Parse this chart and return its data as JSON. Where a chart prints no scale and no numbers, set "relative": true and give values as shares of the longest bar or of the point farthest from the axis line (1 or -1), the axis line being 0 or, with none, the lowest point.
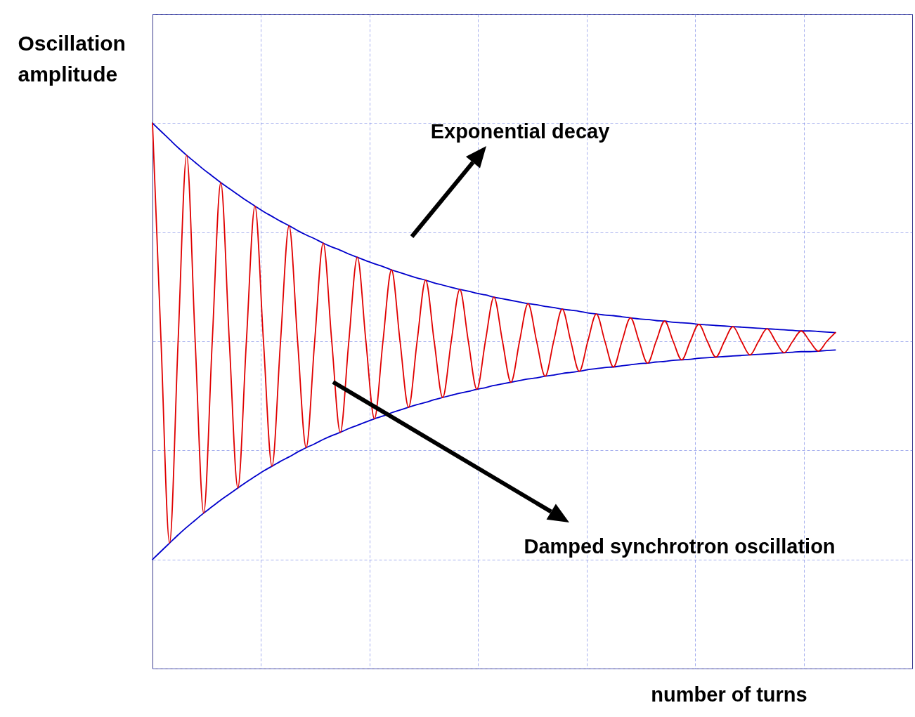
{
  "chart_data": {
    "type": "line",
    "relative": true,
    "grid": true,
    "ylabel": "Oscillation amplitude",
    "xlabel": "number of turns",
    "annotations": [
      "Exponential decay",
      "Damped synchrotron oscillation"
    ],
    "categories": [
      null,
      null,
      null,
      null,
      null,
      null,
      null,
      null,
      null,
      null,
      null,
      null,
      null,
      null,
      null,
      null,
      null,
      null,
      null,
      null,
      null,
      null,
      null,
      null,
      null,
      null,
      null,
      null,
      null,
      null,
      null,
      null,
      null,
      null,
      null,
      null,
      null,
      null,
      null,
      null,
      null,
      null,
      null,
      null,
      null,
      null,
      null,
      null,
      null,
      null,
      null,
      null,
      null,
      null,
      null,
      null,
      null,
      null,
      null,
      null,
      null,
      null,
      null,
      null,
      null,
      null,
      null,
      null,
      null,
      null,
      null,
      null,
      null,
      null,
      null,
      null,
      null,
      null,
      null,
      null,
      null,
      null,
      null,
      null,
      null,
      null,
      null,
      null,
      null,
      null
    ],
    "series": [
      {
        "color": "#0000cc",
        "values": [
          1.0,
          0.985,
          0.97,
          0.955,
          0.941,
          0.928,
          0.915,
          0.903,
          0.891,
          0.88,
          0.869,
          0.858,
          0.848,
          0.838,
          0.829,
          0.82,
          0.812,
          0.803,
          0.795,
          0.788,
          0.78,
          0.773,
          0.767,
          0.76,
          0.754,
          0.748,
          0.742,
          0.737,
          0.731,
          0.726,
          0.721,
          0.716,
          0.712,
          0.707,
          0.703,
          0.699,
          0.695,
          0.692,
          0.688,
          0.685,
          0.681,
          0.678,
          0.675,
          0.672,
          0.669,
          0.667,
          0.664,
          0.662,
          0.659,
          0.657,
          0.655,
          0.652,
          0.65,
          0.648,
          0.647,
          0.645,
          0.643,
          0.641,
          0.64,
          0.638,
          0.637,
          0.635,
          0.634,
          0.633,
          0.631,
          0.63,
          0.629,
          0.628,
          0.627,
          0.626,
          0.625,
          0.624,
          0.623,
          0.622,
          0.621,
          0.62,
          0.619,
          0.619,
          0.618,
          0.617,
          0.616,
          null,
          null,
          null,
          null,
          null,
          null,
          null,
          null,
          null
        ]
      },
      {
        "color": "#0000cc",
        "values": [
          0.2,
          0.215,
          0.23,
          0.245,
          0.259,
          0.272,
          0.285,
          0.297,
          0.309,
          0.32,
          0.331,
          0.342,
          0.352,
          0.362,
          0.371,
          0.38,
          0.388,
          0.397,
          0.405,
          0.412,
          0.42,
          0.427,
          0.433,
          0.44,
          0.446,
          0.452,
          0.458,
          0.463,
          0.469,
          0.474,
          0.479,
          0.484,
          0.488,
          0.493,
          0.497,
          0.501,
          0.505,
          0.508,
          0.512,
          0.515,
          0.519,
          0.522,
          0.525,
          0.528,
          0.531,
          0.533,
          0.536,
          0.538,
          0.541,
          0.543,
          0.545,
          0.548,
          0.55,
          0.552,
          0.553,
          0.555,
          0.557,
          0.559,
          0.56,
          0.562,
          0.563,
          0.565,
          0.566,
          0.567,
          0.569,
          0.57,
          0.571,
          0.572,
          0.573,
          0.574,
          0.575,
          0.576,
          0.577,
          0.578,
          0.579,
          0.58,
          0.581,
          0.581,
          0.582,
          0.583,
          0.584,
          null,
          null,
          null,
          null,
          null,
          null,
          null,
          null,
          null
        ]
      },
      {
        "color": "#e00000",
        "values": [
          1.0,
          0.6,
          0.23,
          0.6,
          0.941,
          0.6,
          0.285,
          0.6,
          0.891,
          0.6,
          0.331,
          0.6,
          0.848,
          0.6,
          0.371,
          0.6,
          0.812,
          0.6,
          0.405,
          0.6,
          0.78,
          0.6,
          0.433,
          0.6,
          0.754,
          0.6,
          0.458,
          0.6,
          0.731,
          0.6,
          0.479,
          0.6,
          0.712,
          0.6,
          0.497,
          0.6,
          0.695,
          0.6,
          0.512,
          0.6,
          0.681,
          0.6,
          0.525,
          0.6,
          0.669,
          0.6,
          0.536,
          0.6,
          0.659,
          0.6,
          0.545,
          0.6,
          0.65,
          0.6,
          0.553,
          0.6,
          0.643,
          0.6,
          0.56,
          0.6,
          0.637,
          0.6,
          0.566,
          0.6,
          0.631,
          0.6,
          0.571,
          0.6,
          0.627,
          0.6,
          0.575,
          0.6,
          0.623,
          0.6,
          0.579,
          0.6,
          0.619,
          0.6,
          0.582,
          0.6,
          0.616,
          null,
          null,
          null,
          null,
          null,
          null,
          null,
          null,
          null
        ]
      }
    ]
  }
}
